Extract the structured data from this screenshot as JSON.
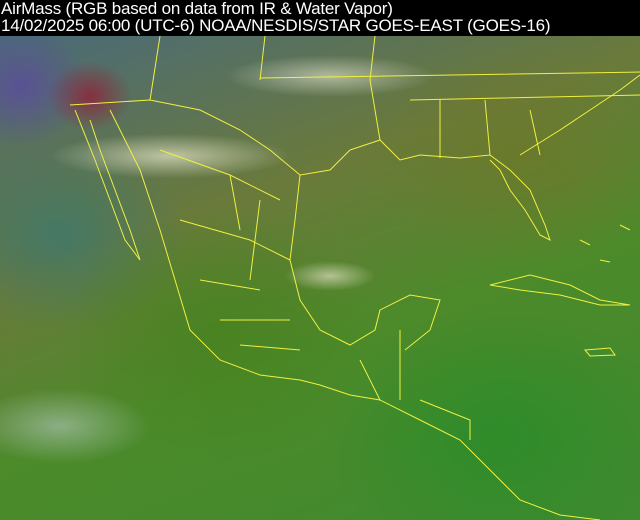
{
  "header": {
    "line1": "AirMass (RGB based on data from IR & Water Vapor)",
    "line2": "14/02/2025 06:00 (UTC-6) NOAA/NESDIS/STAR GOES-EAST (GOES-16)"
  },
  "imagery": {
    "product": "AirMass RGB",
    "region": "Mexico, Central America, Gulf of Mexico, southern United States",
    "border_color": "#f0f040"
  }
}
